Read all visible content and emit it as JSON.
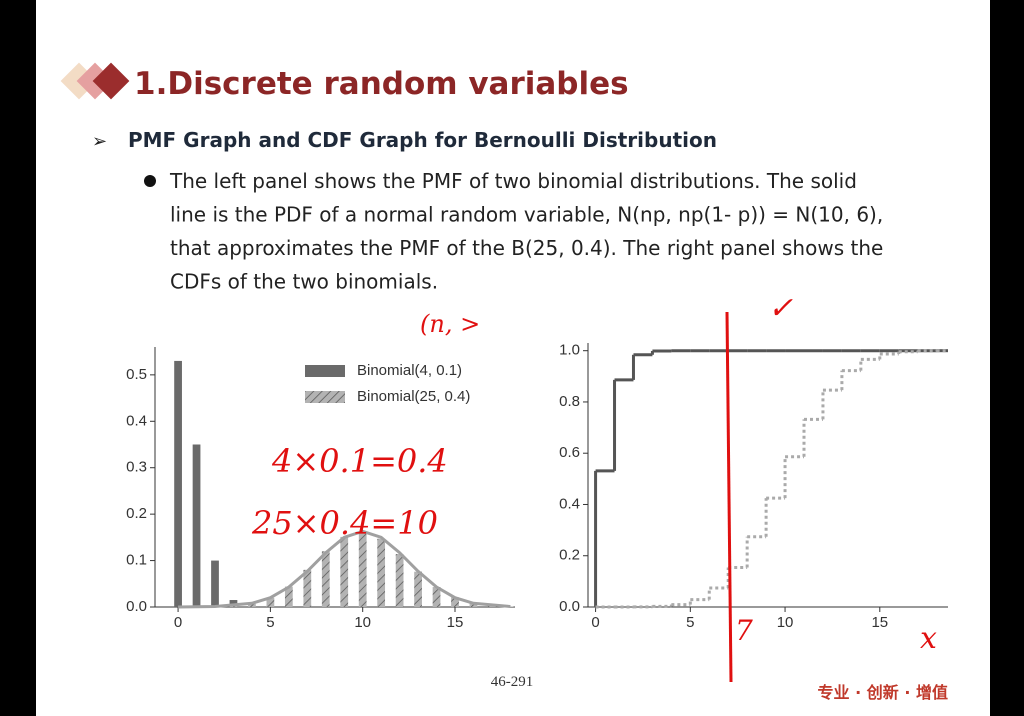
{
  "header": {
    "title": "1.Discrete random variables"
  },
  "subtitle": "PMF Graph and CDF Graph for Bernoulli Distribution",
  "bullet": {
    "lines": [
      "The left panel shows the PMF of two binomial distributions. The solid",
      "line is the PDF of a normal random variable, N(np, np(1- p)) = N(10, 6),",
      "that approximates the PMF of the B(25, 0.4). The right panel shows the",
      "CDFs of the two binomials."
    ]
  },
  "handwriting": [
    "(n, >",
    "4×0.1=0.4",
    "25×0.4=10",
    "7",
    "x",
    "✓"
  ],
  "chart_data": [
    {
      "type": "bar",
      "series": [
        {
          "name": "Binomial(4, 0.1)",
          "color": "#6a6a6a",
          "x": [
            0,
            1,
            2,
            3
          ],
          "values": [
            0.53,
            0.35,
            0.1,
            0.015
          ]
        },
        {
          "name": "Binomial(25, 0.4)",
          "color": "#b3b3b3",
          "hatch": true,
          "x": [
            3,
            4,
            5,
            6,
            7,
            8,
            9,
            10,
            11,
            12,
            13,
            14,
            15,
            16,
            17,
            18
          ],
          "values": [
            0.002,
            0.007,
            0.02,
            0.044,
            0.08,
            0.12,
            0.151,
            0.161,
            0.147,
            0.114,
            0.076,
            0.043,
            0.021,
            0.009,
            0.003,
            0.001
          ]
        }
      ],
      "line": {
        "color": "#a0a0a0",
        "x": [
          0,
          2,
          4,
          5,
          6,
          7,
          8,
          9,
          10,
          11,
          12,
          13,
          14,
          15,
          16,
          18
        ],
        "values": [
          0,
          0.001,
          0.008,
          0.02,
          0.043,
          0.077,
          0.117,
          0.15,
          0.163,
          0.15,
          0.117,
          0.077,
          0.043,
          0.02,
          0.008,
          0.001
        ]
      },
      "xlim": [
        -1.25,
        18.25
      ],
      "xticks": [
        0,
        5,
        10,
        15
      ],
      "ylim": [
        0,
        0.56
      ],
      "yticks": [
        {
          "value": 0,
          "label": "0.0"
        },
        0.1,
        0.2,
        0.3,
        0.4,
        0.5
      ],
      "legend": "top-right"
    },
    {
      "type": "step",
      "series": [
        {
          "color": "#555555",
          "x": [
            0,
            1,
            2,
            3,
            4,
            5,
            6,
            7,
            8,
            9,
            10,
            11,
            12,
            13,
            14,
            15,
            16,
            17,
            18
          ],
          "values": [
            0.531,
            0.886,
            0.984,
            0.999,
            1,
            1,
            1,
            1,
            1,
            1,
            1,
            1,
            1,
            1,
            1,
            1,
            1,
            1,
            1
          ]
        },
        {
          "color": "#aaaaaa",
          "dashed": true,
          "x": [
            0,
            1,
            2,
            3,
            4,
            5,
            6,
            7,
            8,
            9,
            10,
            11,
            12,
            13,
            14,
            15,
            16,
            17,
            18
          ],
          "values": [
            0,
            0,
            0.0004,
            0.0024,
            0.0095,
            0.029,
            0.074,
            0.154,
            0.274,
            0.425,
            0.586,
            0.732,
            0.846,
            0.922,
            0.966,
            0.987,
            0.996,
            0.999,
            1
          ]
        }
      ],
      "xlim": [
        -0.4,
        18.6
      ],
      "xticks": [
        0,
        5,
        10,
        15
      ],
      "ylim": [
        0,
        1.03
      ],
      "yticks": [
        {
          "value": 0,
          "label": "0.0"
        },
        0.2,
        0.4,
        0.6,
        0.8,
        {
          "value": 1,
          "label": "1.0"
        }
      ]
    }
  ],
  "footer": {
    "page": "46-291",
    "logo": "专业 · 创新 · 增值"
  }
}
